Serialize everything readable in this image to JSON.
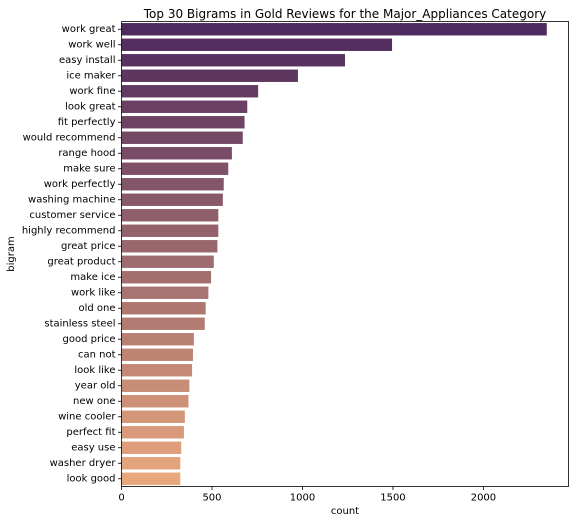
{
  "chart_data": {
    "type": "bar",
    "orientation": "horizontal",
    "title": "Top 30 Bigrams in Gold Reviews for the Major_Appliances Category",
    "xlabel": "count",
    "ylabel": "bigram",
    "xlim": [
      0,
      2470
    ],
    "xticks": [
      0,
      500,
      1000,
      1500,
      2000
    ],
    "grid": false,
    "palette": "flare",
    "color_start": "#e8a77d",
    "color_end": "#4e2a5e",
    "categories": [
      "work great",
      "work well",
      "easy install",
      "ice maker",
      "work fine",
      "look great",
      "fit perfectly",
      "would recommend",
      "range hood",
      "make sure",
      "work perfectly",
      "washing machine",
      "customer service",
      "highly recommend",
      "great price",
      "great product",
      "make ice",
      "work like",
      "old one",
      "stainless steel",
      "good price",
      "can not",
      "look like",
      "year old",
      "new one",
      "wine cooler",
      "perfect fit",
      "easy use",
      "washer dryer",
      "look good"
    ],
    "values": [
      2350,
      1495,
      1235,
      975,
      755,
      695,
      680,
      670,
      610,
      590,
      565,
      560,
      535,
      535,
      530,
      510,
      495,
      480,
      465,
      460,
      400,
      395,
      390,
      375,
      370,
      350,
      345,
      330,
      325,
      325
    ]
  }
}
